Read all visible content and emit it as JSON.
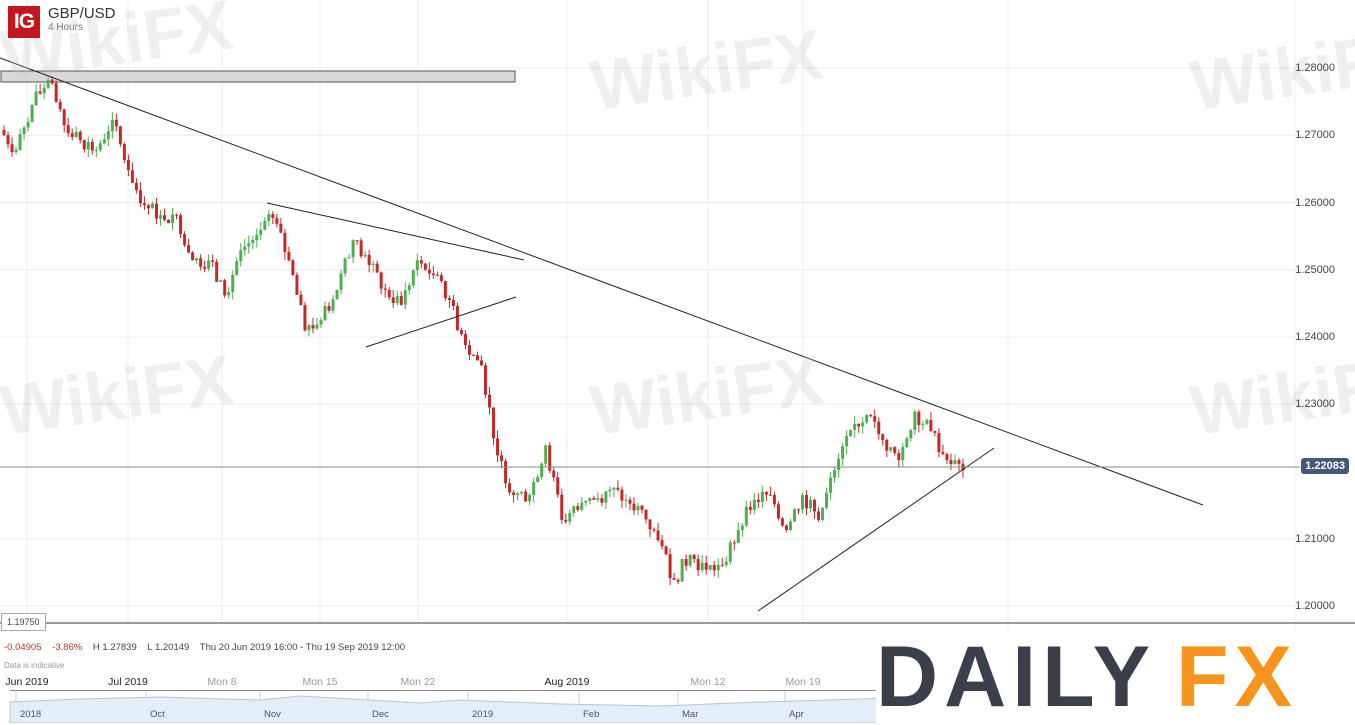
{
  "header": {
    "logo": "IG",
    "symbol": "GBP/USD",
    "timeframe": "4 Hours"
  },
  "watermark": "WikiFX",
  "brand": {
    "part1": "DAILY",
    "part2": "FX",
    "color1": "#3a3f4b",
    "color2": "#f7941d"
  },
  "stats": {
    "change": "-0.04905",
    "change_pct": "-3.86%",
    "high": "H 1.27839",
    "low": "L 1.20149",
    "range": "Thu 20 Jun 2019 16:00 - Thu 19 Sep 2019 12:00",
    "note": "Data is indicative"
  },
  "low_label": "1.19750",
  "navigator": {
    "labels": [
      "2018",
      "Oct",
      "Nov",
      "Dec",
      "2019",
      "Feb",
      "Mar",
      "Apr"
    ]
  },
  "chart_data": {
    "type": "candlestick",
    "title": "GBP/USD",
    "subtitle": "4 Hours",
    "ylim": [
      1.1975,
      1.2853
    ],
    "yticks": [
      "1.28000",
      "1.27000",
      "1.26000",
      "1.25000",
      "1.24000",
      "1.23000",
      "1.21000",
      "1.20000"
    ],
    "ytick_values": [
      1.28,
      1.27,
      1.26,
      1.25,
      1.24,
      1.23,
      1.21,
      1.2
    ],
    "xticks": [
      "Jun 2019",
      "Jul 2019",
      "Mon 8",
      "Mon 15",
      "Mon 22",
      "Aug 2019",
      "Mon 12",
      "Mon 19"
    ],
    "xticks_bold": [
      true,
      true,
      false,
      false,
      false,
      true,
      false,
      false
    ],
    "last_price": "1.22083",
    "last_price_value": 1.22083,
    "grid": true,
    "colors": {
      "up": "#4caf50",
      "down": "#c62828",
      "last_price_bg": "#44587a"
    },
    "closes_approx": [
      1.2708,
      1.2678,
      1.2745,
      1.2782,
      1.2715,
      1.2693,
      1.2678,
      1.2723,
      1.2648,
      1.2596,
      1.2581,
      1.2581,
      1.2514,
      1.2514,
      1.2462,
      1.2529,
      1.2552,
      1.2577,
      1.2514,
      1.241,
      1.2425,
      1.247,
      1.2544,
      1.2507,
      1.247,
      1.2448,
      1.2514,
      1.2492,
      1.2455,
      1.2388,
      1.2358,
      1.2224,
      1.2165,
      1.2165,
      1.2239,
      1.2128,
      1.2143,
      1.2158,
      1.2173,
      1.2158,
      1.2143,
      1.2098,
      1.2039,
      1.2076,
      1.2054,
      1.2061,
      1.2113,
      1.2158,
      1.2165,
      1.2113,
      1.2165,
      1.2128,
      1.2202,
      1.2262,
      1.2284,
      1.2247,
      1.2217,
      1.2289,
      1.226,
      1.2217,
      1.2202
    ]
  }
}
